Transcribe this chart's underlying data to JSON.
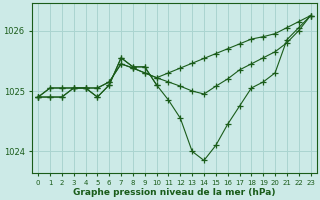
{
  "title": "Graphe pression niveau de la mer (hPa)",
  "bg_color": "#cceae7",
  "grid_color": "#aad4d0",
  "line_color": "#1a5c1a",
  "xlim": [
    -0.5,
    23.5
  ],
  "ylim": [
    1023.65,
    1026.45
  ],
  "yticks": [
    1024,
    1025,
    1026
  ],
  "xtick_labels": [
    "0",
    "1",
    "2",
    "3",
    "4",
    "5",
    "6",
    "7",
    "8",
    "9",
    "10",
    "11",
    "12",
    "13",
    "14",
    "15",
    "16",
    "17",
    "18",
    "19",
    "20",
    "21",
    "22",
    "23"
  ],
  "series": [
    {
      "x": [
        0,
        1,
        2,
        3,
        4,
        5,
        6,
        7,
        8,
        9,
        10,
        11,
        12,
        13,
        14,
        15,
        16,
        17,
        18,
        19,
        20,
        21,
        22,
        23
      ],
      "y": [
        1024.9,
        1024.9,
        1024.9,
        1025.05,
        1025.05,
        1024.9,
        1025.1,
        1025.55,
        1025.4,
        1025.4,
        1025.1,
        1024.85,
        1024.55,
        1024.0,
        1023.85,
        1024.1,
        1024.45,
        1024.75,
        1025.05,
        1025.15,
        1025.3,
        1025.85,
        1026.05,
        1026.25
      ]
    },
    {
      "x": [
        0,
        1,
        2,
        3,
        4,
        5,
        6,
        7,
        8,
        9,
        10
      ],
      "y": [
        1024.9,
        1024.9,
        1024.9,
        1025.05,
        1025.05,
        1024.9,
        1025.1,
        1025.55,
        1025.4,
        1025.4,
        1025.1
      ]
    },
    {
      "x": [
        0,
        1,
        2,
        3,
        4,
        5,
        6,
        7,
        8,
        9,
        10,
        11,
        12,
        13,
        14,
        15,
        16,
        17,
        18,
        19,
        20,
        21,
        22,
        23
      ],
      "y": [
        1024.9,
        1025.05,
        1025.05,
        1025.05,
        1025.05,
        1025.05,
        1025.15,
        1025.45,
        1025.38,
        1025.3,
        1025.22,
        1025.3,
        1025.38,
        1025.46,
        1025.54,
        1025.62,
        1025.7,
        1025.78,
        1025.86,
        1025.9,
        1025.95,
        1026.05,
        1026.15,
        1026.25
      ]
    },
    {
      "x": [
        0,
        1,
        2,
        3,
        4,
        5,
        6,
        7,
        8,
        9,
        10,
        11,
        12,
        13,
        14,
        15,
        16,
        17,
        18,
        19,
        20,
        21,
        22,
        23
      ],
      "y": [
        1024.9,
        1025.05,
        1025.05,
        1025.05,
        1025.05,
        1025.05,
        1025.15,
        1025.45,
        1025.38,
        1025.3,
        1025.22,
        1025.15,
        1025.08,
        1025.0,
        1024.95,
        1025.08,
        1025.2,
        1025.35,
        1025.45,
        1025.55,
        1025.65,
        1025.8,
        1026.0,
        1026.25
      ]
    }
  ]
}
